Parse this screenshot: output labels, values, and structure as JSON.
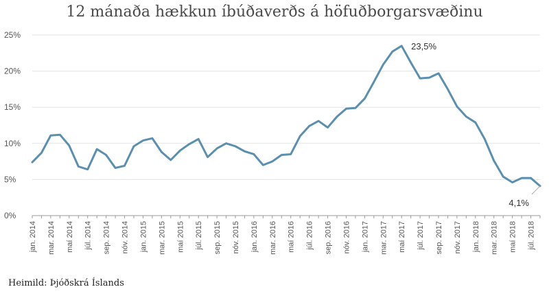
{
  "chart_data": {
    "type": "line",
    "title": "12 mánaða hækkun íbúðaverðs á höfuðborgarsvæðinu",
    "source": "Heimild: Þjóðskrá Íslands",
    "ylim": [
      0,
      25
    ],
    "yticks": [
      "0%",
      "5%",
      "10%",
      "15%",
      "20%",
      "25%"
    ],
    "xtick_labels": [
      "jan. 2014",
      "mar. 2014",
      "maí 2014",
      "júl. 2014",
      "sep. 2014",
      "nóv. 2014",
      "jan. 2015",
      "mar. 2015",
      "maí 2015",
      "júl. 2015",
      "sep. 2015",
      "nóv. 2015",
      "jan. 2016",
      "mar. 2016",
      "maí 2016",
      "júl. 2016",
      "sep. 2016",
      "nóv. 2016",
      "jan. 2017",
      "mar. 2017",
      "maí 2017",
      "júl. 2017",
      "sep. 2017",
      "nóv. 2017",
      "jan. 2018",
      "mar. 2018",
      "maí 2018",
      "júl. 2018"
    ],
    "x": [
      "2014-01",
      "2014-02",
      "2014-03",
      "2014-04",
      "2014-05",
      "2014-06",
      "2014-07",
      "2014-08",
      "2014-09",
      "2014-10",
      "2014-11",
      "2014-12",
      "2015-01",
      "2015-02",
      "2015-03",
      "2015-04",
      "2015-05",
      "2015-06",
      "2015-07",
      "2015-08",
      "2015-09",
      "2015-10",
      "2015-11",
      "2015-12",
      "2016-01",
      "2016-02",
      "2016-03",
      "2016-04",
      "2016-05",
      "2016-06",
      "2016-07",
      "2016-08",
      "2016-09",
      "2016-10",
      "2016-11",
      "2016-12",
      "2017-01",
      "2017-02",
      "2017-03",
      "2017-04",
      "2017-05",
      "2017-06",
      "2017-07",
      "2017-08",
      "2017-09",
      "2017-10",
      "2017-11",
      "2017-12",
      "2018-01",
      "2018-02",
      "2018-03",
      "2018-04",
      "2018-05",
      "2018-06",
      "2018-07",
      "2018-08"
    ],
    "values": [
      7.4,
      8.7,
      11.1,
      11.2,
      9.7,
      6.8,
      6.4,
      9.2,
      8.4,
      6.6,
      6.9,
      9.6,
      10.4,
      10.7,
      8.8,
      7.7,
      9.0,
      9.9,
      10.6,
      8.1,
      9.3,
      10.0,
      9.6,
      8.9,
      8.5,
      7.0,
      7.5,
      8.4,
      8.5,
      11.0,
      12.4,
      13.1,
      12.2,
      13.7,
      14.8,
      14.9,
      16.2,
      18.5,
      20.9,
      22.7,
      23.5,
      21.2,
      19.0,
      19.1,
      19.7,
      17.5,
      15.1,
      13.7,
      12.9,
      10.6,
      7.6,
      5.4,
      4.6,
      5.2,
      5.2,
      4.1
    ],
    "annotations": [
      {
        "index": 40,
        "label": "23,5%"
      },
      {
        "index": 55,
        "label": "4,1%"
      }
    ],
    "colors": {
      "line": "#5b8fae",
      "grid": "#e3e3e3",
      "axis": "#999999"
    },
    "grid": true
  }
}
